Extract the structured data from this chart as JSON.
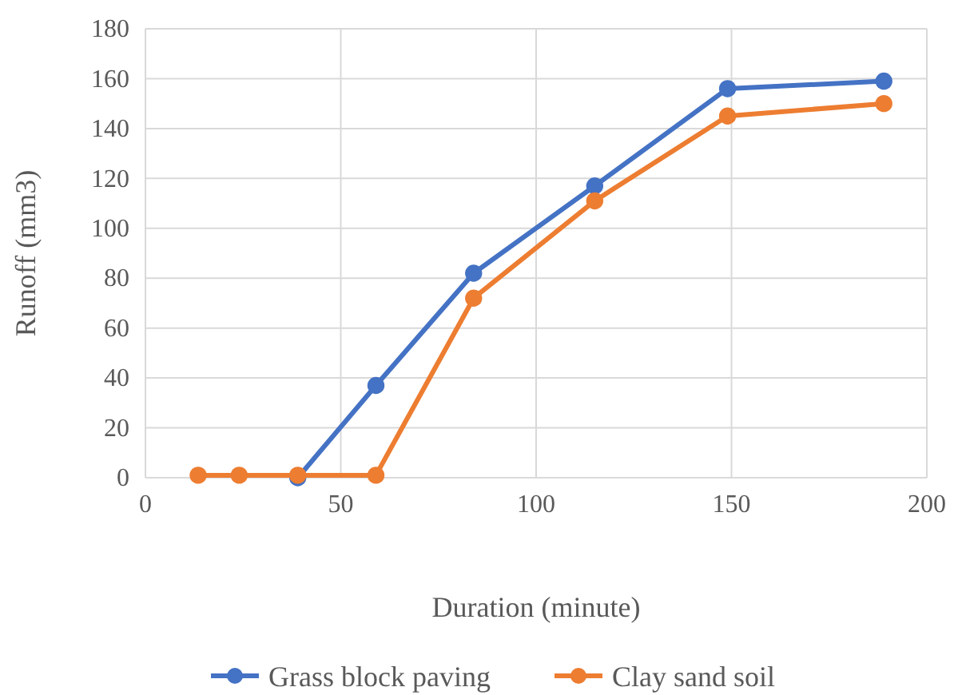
{
  "chart_data": {
    "type": "line",
    "xlabel": "Duration (minute)",
    "ylabel": "Runoff (mm3)",
    "xlim": [
      0,
      200
    ],
    "xticks": [
      0,
      50,
      100,
      150,
      200
    ],
    "ylim": [
      0,
      180
    ],
    "yticks": [
      0,
      20,
      40,
      60,
      80,
      100,
      120,
      140,
      160,
      180
    ],
    "grid": true,
    "legend": "bottom",
    "marker": "circle",
    "line_style": "solid",
    "series": [
      {
        "name": "Grass block paving",
        "color": "#4472c4",
        "x": [
          39,
          59,
          84,
          115,
          149,
          189
        ],
        "values": [
          0,
          37,
          82,
          117,
          156,
          159
        ]
      },
      {
        "name": "Clay sand soil",
        "color": "#ed7d31",
        "x": [
          13.5,
          24,
          39,
          59,
          84,
          115,
          149,
          189
        ],
        "values": [
          1,
          1,
          1,
          1,
          72,
          111,
          145,
          150
        ]
      }
    ]
  }
}
